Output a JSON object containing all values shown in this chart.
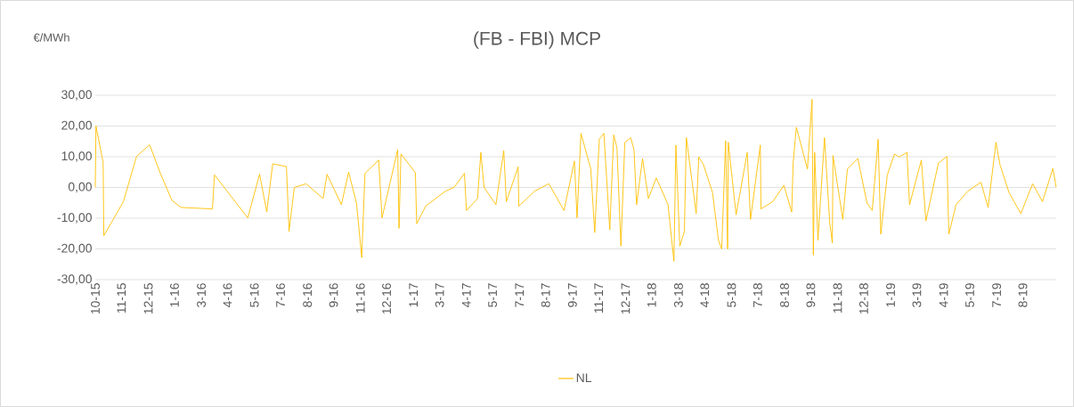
{
  "chart_data": {
    "type": "line",
    "title": "(FB - FBI) MCP",
    "ylabel": "€/MWh",
    "x": [
      "2015-10-01",
      "2015-10-02",
      "2015-10-13",
      "2015-10-14",
      "2015-11-13",
      "2015-12-03",
      "2015-12-23",
      "2016-01-08",
      "2016-01-26",
      "2016-02-09",
      "2016-03-28",
      "2016-03-31",
      "2016-05-21",
      "2016-06-08",
      "2016-06-19",
      "2016-06-28",
      "2016-07-19",
      "2016-07-23",
      "2016-07-31",
      "2016-08-18",
      "2016-09-13",
      "2016-09-19",
      "2016-10-11",
      "2016-10-22",
      "2016-11-03",
      "2016-11-11",
      "2016-11-16",
      "2016-12-07",
      "2016-12-12",
      "2017-01-05",
      "2017-01-07",
      "2017-01-10",
      "2017-02-01",
      "2017-02-03",
      "2017-02-17",
      "2017-03-19",
      "2017-04-01",
      "2017-04-17",
      "2017-04-20",
      "2017-05-07",
      "2017-05-12",
      "2017-05-17",
      "2017-06-04",
      "2017-06-16",
      "2017-06-20",
      "2017-07-08",
      "2017-07-09",
      "2017-08-02",
      "2017-08-24",
      "2017-09-16",
      "2017-10-02",
      "2017-10-06",
      "2017-10-12",
      "2017-10-27",
      "2017-11-02",
      "2017-11-09",
      "2017-11-16",
      "2017-11-25",
      "2017-12-01",
      "2017-12-06",
      "2017-12-12",
      "2017-12-18",
      "2017-12-27",
      "2018-01-01",
      "2018-01-05",
      "2018-01-14",
      "2018-01-23",
      "2018-02-04",
      "2018-02-22",
      "2018-03-03",
      "2018-03-06",
      "2018-03-12",
      "2018-03-19",
      "2018-03-22",
      "2018-04-06",
      "2018-04-10",
      "2018-04-17",
      "2018-05-01",
      "2018-05-10",
      "2018-05-15",
      "2018-05-21",
      "2018-05-24",
      "2018-05-25",
      "2018-06-06",
      "2018-06-23",
      "2018-06-28",
      "2018-07-13",
      "2018-07-14",
      "2018-08-01",
      "2018-08-18",
      "2018-08-30",
      "2018-09-01",
      "2018-09-06",
      "2018-09-23",
      "2018-09-30",
      "2018-10-02",
      "2018-10-04",
      "2018-10-09",
      "2018-10-19",
      "2018-10-27",
      "2018-10-31",
      "2018-11-01",
      "2018-11-16",
      "2018-11-23",
      "2018-12-09",
      "2018-12-23",
      "2018-12-31",
      "2019-01-09",
      "2019-01-13",
      "2019-01-23",
      "2019-02-03",
      "2019-02-10",
      "2019-02-22",
      "2019-02-26",
      "2019-03-16",
      "2019-03-23",
      "2019-04-11",
      "2019-04-24",
      "2019-04-27",
      "2019-05-08",
      "2019-05-26",
      "2019-06-15",
      "2019-06-26",
      "2019-07-08",
      "2019-07-14",
      "2019-07-28",
      "2019-08-15",
      "2019-09-02",
      "2019-09-17",
      "2019-10-03",
      "2019-10-08"
    ],
    "series": [
      {
        "name": "NL",
        "color": "#ffc000",
        "values": [
          0.0,
          20.0,
          8.1,
          -15.7,
          -4.6,
          10.1,
          13.9,
          4.8,
          -4.2,
          -6.5,
          -7.0,
          4.1,
          -9.9,
          4.3,
          -8.0,
          7.7,
          6.8,
          -14.3,
          0.0,
          1.2,
          -3.6,
          4.3,
          -5.6,
          5.0,
          -5.0,
          -22.8,
          4.6,
          8.9,
          -9.9,
          12.3,
          -13.3,
          10.9,
          4.8,
          -11.8,
          -6.0,
          -1.2,
          0.0,
          4.6,
          -7.5,
          -3.6,
          11.4,
          0.0,
          -5.6,
          12.0,
          -4.6,
          6.7,
          -6.1,
          -1.2,
          1.2,
          -7.5,
          8.6,
          -9.9,
          17.6,
          6.0,
          -14.7,
          15.7,
          17.6,
          -13.8,
          17.1,
          12.8,
          -19.1,
          14.7,
          16.2,
          12.3,
          -5.6,
          9.4,
          -3.6,
          3.1,
          -5.6,
          -24.0,
          13.8,
          -19.1,
          -14.3,
          16.2,
          -8.5,
          9.9,
          7.5,
          -1.7,
          -17.2,
          -20.0,
          15.2,
          -20.0,
          14.7,
          -8.9,
          11.4,
          -10.4,
          13.8,
          -7.0,
          -4.6,
          0.7,
          -8.0,
          7.5,
          19.6,
          6.0,
          28.7,
          -22.0,
          11.4,
          -17.2,
          16.2,
          -11.4,
          -18.1,
          10.4,
          -10.4,
          6.0,
          9.4,
          -5.1,
          -7.5,
          15.7,
          -15.2,
          4.1,
          10.9,
          9.9,
          11.4,
          -5.6,
          8.9,
          -10.9,
          7.9,
          10.1,
          -15.2,
          -5.6,
          -1.2,
          1.7,
          -6.5,
          14.7,
          7.5,
          -1.7,
          -8.5,
          1.2,
          -4.6,
          6.2,
          0.0
        ]
      }
    ],
    "xlim": [
      "2015-10-01",
      "2019-10-08"
    ],
    "xticks": [
      {
        "value": "2015-10-01",
        "label": "10-15"
      },
      {
        "value": "2015-11-10",
        "label": "11-15"
      },
      {
        "value": "2015-12-21",
        "label": "12-15"
      },
      {
        "value": "2016-01-30",
        "label": "1-16"
      },
      {
        "value": "2016-03-11",
        "label": "3-16"
      },
      {
        "value": "2016-04-20",
        "label": "4-16"
      },
      {
        "value": "2016-05-31",
        "label": "5-16"
      },
      {
        "value": "2016-07-10",
        "label": "7-16"
      },
      {
        "value": "2016-08-20",
        "label": "8-16"
      },
      {
        "value": "2016-09-29",
        "label": "9-16"
      },
      {
        "value": "2016-11-09",
        "label": "11-16"
      },
      {
        "value": "2016-12-19",
        "label": "12-16"
      },
      {
        "value": "2017-01-29",
        "label": "1-17"
      },
      {
        "value": "2017-03-10",
        "label": "3-17"
      },
      {
        "value": "2017-04-20",
        "label": "4-17"
      },
      {
        "value": "2017-05-30",
        "label": "5-17"
      },
      {
        "value": "2017-07-10",
        "label": "7-17"
      },
      {
        "value": "2017-08-19",
        "label": "8-17"
      },
      {
        "value": "2017-09-29",
        "label": "9-17"
      },
      {
        "value": "2017-11-08",
        "label": "11-17"
      },
      {
        "value": "2017-12-19",
        "label": "12-17"
      },
      {
        "value": "2018-01-28",
        "label": "1-18"
      },
      {
        "value": "2018-03-10",
        "label": "3-18"
      },
      {
        "value": "2018-04-19",
        "label": "4-18"
      },
      {
        "value": "2018-05-30",
        "label": "5-18"
      },
      {
        "value": "2018-07-09",
        "label": "7-18"
      },
      {
        "value": "2018-08-19",
        "label": "8-18"
      },
      {
        "value": "2018-09-28",
        "label": "9-18"
      },
      {
        "value": "2018-11-08",
        "label": "11-18"
      },
      {
        "value": "2018-12-18",
        "label": "12-18"
      },
      {
        "value": "2019-01-28",
        "label": "1-19"
      },
      {
        "value": "2019-03-09",
        "label": "3-19"
      },
      {
        "value": "2019-04-19",
        "label": "4-19"
      },
      {
        "value": "2019-05-29",
        "label": "5-19"
      },
      {
        "value": "2019-07-09",
        "label": "7-19"
      },
      {
        "value": "2019-08-18",
        "label": "8-19"
      }
    ],
    "ylim": [
      -30,
      30
    ],
    "yticks": [
      {
        "value": -30,
        "label": "-30,00"
      },
      {
        "value": -20,
        "label": "-20,00"
      },
      {
        "value": -10,
        "label": "-10,00"
      },
      {
        "value": 0,
        "label": "0,00"
      },
      {
        "value": 10,
        "label": "10,00"
      },
      {
        "value": 20,
        "label": "20,00"
      },
      {
        "value": 30,
        "label": "30,00"
      }
    ],
    "grid": "y",
    "legend": "bottom"
  }
}
